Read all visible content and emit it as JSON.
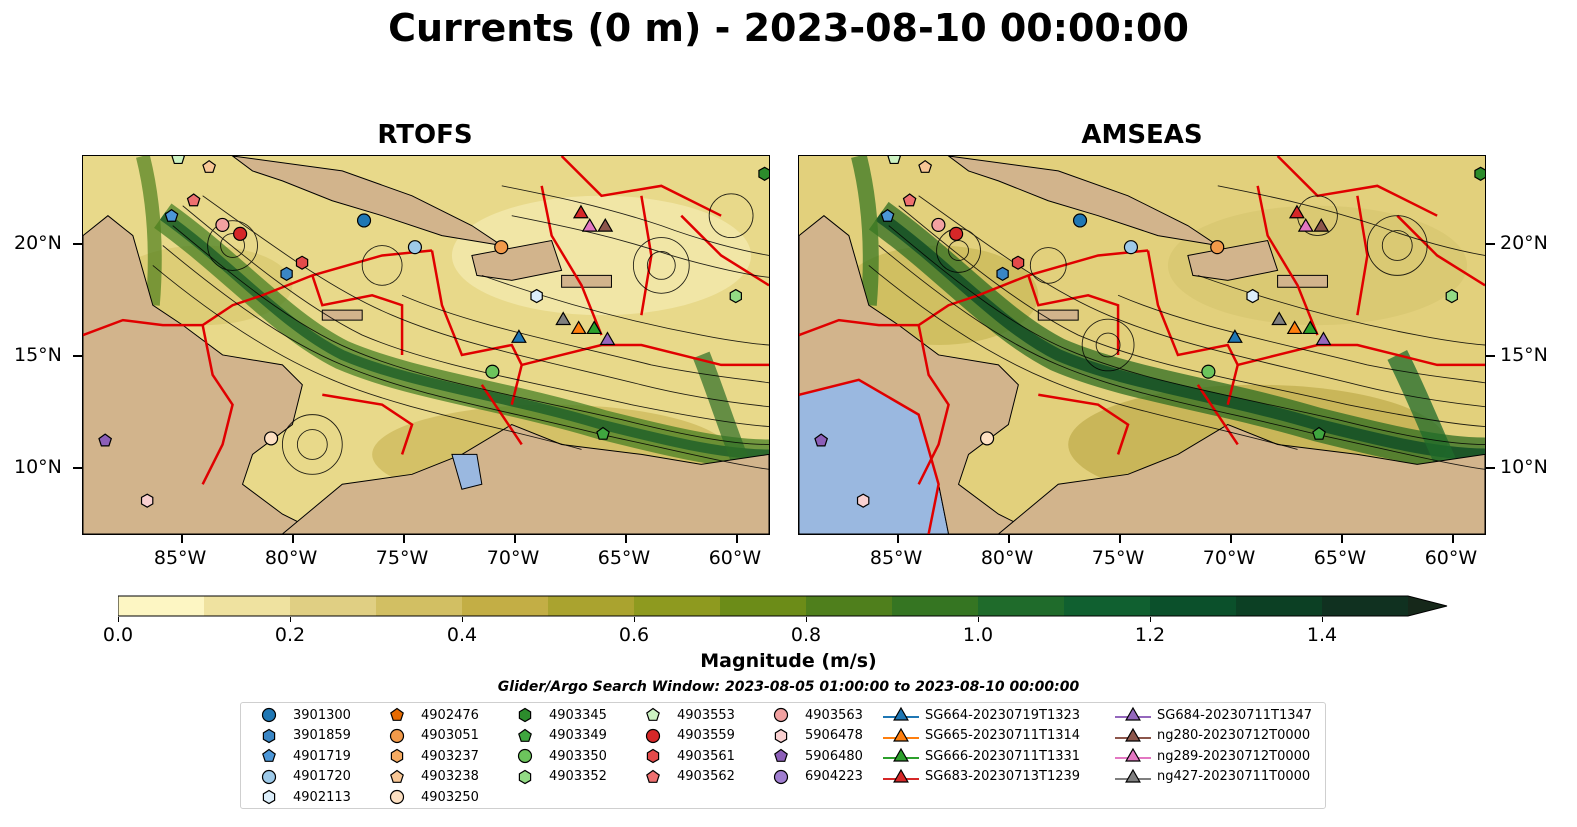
{
  "title": "Currents (0 m) - 2023-08-10 00:00:00",
  "panels": [
    {
      "title": "RTOFS"
    },
    {
      "title": "AMSEAS"
    }
  ],
  "axes": {
    "x_ticks": [
      "85°W",
      "80°W",
      "75°W",
      "70°W",
      "65°W",
      "60°W"
    ],
    "y_ticks": [
      "20°N",
      "15°N",
      "10°N"
    ],
    "x_lon": [
      -85,
      -80,
      -75,
      -70,
      -65,
      -60
    ],
    "y_lat": [
      20,
      15,
      10
    ],
    "lon_range": [
      -89.5,
      -58.5
    ],
    "lat_range": [
      7,
      24
    ]
  },
  "colorbar": {
    "title": "Magnitude (m/s)",
    "tick_labels": [
      "0.0",
      "0.2",
      "0.4",
      "0.6",
      "0.8",
      "1.0",
      "1.2",
      "1.4"
    ],
    "tick_values": [
      0,
      0.2,
      0.4,
      0.6,
      0.8,
      1.0,
      1.2,
      1.4
    ],
    "range": [
      0,
      1.5
    ],
    "extend": "max",
    "colors": [
      "#fdf6c3",
      "#efe2a0",
      "#e0cf83",
      "#d2bf63",
      "#c3ae45",
      "#aaa32f",
      "#8e9a1f",
      "#6c8c18",
      "#4f7f1c",
      "#357522",
      "#1f6b2b",
      "#106030",
      "#0b502b",
      "#0c4024",
      "#103120",
      "#16281a"
    ]
  },
  "search_window": "Glider/Argo Search Window: 2023-08-05 01:00:00 to 2023-08-10 00:00:00",
  "colors": {
    "land": "#d2b48c",
    "ocean_fill": "#f1e6a5",
    "eez_lines": "#e00000",
    "lake": "#9ab8e0"
  },
  "legend": [
    {
      "label": "3901300",
      "marker": "circle",
      "color": "#1f77b4"
    },
    {
      "label": "3901859",
      "marker": "hexagon",
      "color": "#3a86c5"
    },
    {
      "label": "4901719",
      "marker": "pentagon",
      "color": "#4c97d8"
    },
    {
      "label": "4901720",
      "marker": "circle",
      "color": "#9ecae9"
    },
    {
      "label": "4902113",
      "marker": "hexagon",
      "color": "#dceefa"
    },
    {
      "label": "4902476",
      "marker": "pentagon",
      "color": "#e66a00"
    },
    {
      "label": "4903051",
      "marker": "circle",
      "color": "#f29a4a"
    },
    {
      "label": "4903237",
      "marker": "hexagon",
      "color": "#f5ab62"
    },
    {
      "label": "4903238",
      "marker": "pentagon",
      "color": "#f8c796"
    },
    {
      "label": "4903250",
      "marker": "circle",
      "color": "#fde0c2"
    },
    {
      "label": "4903345",
      "marker": "hexagon",
      "color": "#2c8c2c"
    },
    {
      "label": "4903349",
      "marker": "pentagon",
      "color": "#3fa63f"
    },
    {
      "label": "4903350",
      "marker": "circle",
      "color": "#6cc45c"
    },
    {
      "label": "4903352",
      "marker": "hexagon",
      "color": "#93db85"
    },
    {
      "label": "4903553",
      "marker": "pentagon",
      "color": "#ccf2c2"
    },
    {
      "label": "4903559",
      "marker": "circle",
      "color": "#d62728"
    },
    {
      "label": "4903561",
      "marker": "hexagon",
      "color": "#e34a4a"
    },
    {
      "label": "4903562",
      "marker": "pentagon",
      "color": "#ee7070"
    },
    {
      "label": "4903563",
      "marker": "circle",
      "color": "#f2a1a1"
    },
    {
      "label": "5906478",
      "marker": "hexagon",
      "color": "#f9d0d0"
    },
    {
      "label": "5906480",
      "marker": "pentagon",
      "color": "#8c5fb8"
    },
    {
      "label": "6904223",
      "marker": "circle",
      "color": "#a07ed0"
    },
    {
      "label": "SG664-20230719T1323",
      "marker": "triangle",
      "color": "#1f77b4"
    },
    {
      "label": "SG665-20230711T1314",
      "marker": "triangle",
      "color": "#ff7f0e"
    },
    {
      "label": "SG666-20230711T1331",
      "marker": "triangle",
      "color": "#2ca02c"
    },
    {
      "label": "SG683-20230713T1239",
      "marker": "triangle",
      "color": "#d62728"
    },
    {
      "label": "SG684-20230711T1347",
      "marker": "triangle",
      "color": "#9467bd"
    },
    {
      "label": "ng280-20230712T0000",
      "marker": "triangle",
      "color": "#8c564b"
    },
    {
      "label": "ng289-20230712T0000",
      "marker": "triangle",
      "color": "#e377c2"
    },
    {
      "label": "ng427-20230711T0000",
      "marker": "triangle",
      "color": "#7f7f7f"
    }
  ],
  "platforms": [
    {
      "id": "3901300",
      "lon": -76.8,
      "lat": 21.1
    },
    {
      "id": "3901859",
      "lon": -80.3,
      "lat": 18.7
    },
    {
      "id": "4901719",
      "lon": -85.5,
      "lat": 21.3
    },
    {
      "id": "4901720",
      "lon": -74.5,
      "lat": 19.9
    },
    {
      "id": "4902113",
      "lon": -69.0,
      "lat": 17.7
    },
    {
      "id": "4903051",
      "lon": -70.6,
      "lat": 19.9
    },
    {
      "id": "4903250",
      "lon": -81.0,
      "lat": 11.3
    },
    {
      "id": "4903350",
      "lon": -71.0,
      "lat": 14.3
    },
    {
      "id": "4903352",
      "lon": -60.0,
      "lat": 17.7
    },
    {
      "id": "4903345",
      "lon": -58.7,
      "lat": 23.2
    },
    {
      "id": "4903349",
      "lon": -66.0,
      "lat": 11.5
    },
    {
      "id": "4903553",
      "lon": -85.2,
      "lat": 23.9
    },
    {
      "id": "4903559",
      "lon": -82.4,
      "lat": 20.5
    },
    {
      "id": "4903561",
      "lon": -79.6,
      "lat": 19.2
    },
    {
      "id": "4903562",
      "lon": -84.5,
      "lat": 22.0
    },
    {
      "id": "4903563",
      "lon": -83.2,
      "lat": 20.9
    },
    {
      "id": "5906478",
      "lon": -86.6,
      "lat": 8.5
    },
    {
      "id": "5906480",
      "lon": -88.5,
      "lat": 11.2
    },
    {
      "id": "4903238",
      "lon": -83.8,
      "lat": 23.5
    },
    {
      "id": "SG664-20230719T1323",
      "lon": -69.8,
      "lat": 15.8
    },
    {
      "id": "SG665-20230711T1314",
      "lon": -67.1,
      "lat": 16.2
    },
    {
      "id": "SG666-20230711T1331",
      "lon": -66.4,
      "lat": 16.2
    },
    {
      "id": "SG683-20230713T1239",
      "lon": -67.0,
      "lat": 21.4
    },
    {
      "id": "SG684-20230711T1347",
      "lon": -65.8,
      "lat": 15.7
    },
    {
      "id": "ng280-20230712T0000",
      "lon": -65.9,
      "lat": 20.8
    },
    {
      "id": "ng289-20230712T0000",
      "lon": -66.6,
      "lat": 20.8
    },
    {
      "id": "ng427-20230711T0000",
      "lon": -67.8,
      "lat": 16.6
    }
  ]
}
